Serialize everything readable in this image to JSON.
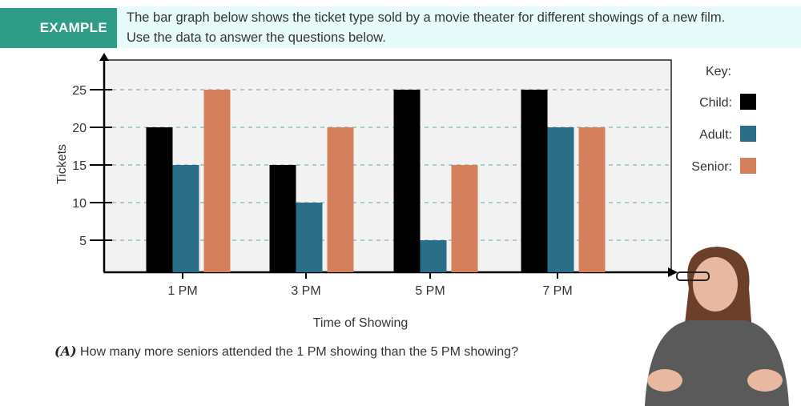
{
  "header": {
    "badge": "EXAMPLE",
    "intro_line1": "The bar graph below shows the ticket type sold by a movie theater for different showings of a new film.",
    "intro_line2": "Use the data to answer the questions below."
  },
  "chart_data": {
    "type": "bar",
    "xlabel": "Time of Showing",
    "ylabel": "Tickets",
    "categories": [
      "1 PM",
      "3 PM",
      "5 PM",
      "7 PM"
    ],
    "yticks": [
      5,
      10,
      15,
      20,
      25
    ],
    "ylim": [
      0,
      29
    ],
    "grid": true,
    "legend_title": "Key:",
    "legend_placement": "right",
    "series": [
      {
        "name": "Child:",
        "color": "#000000",
        "values": [
          20,
          15,
          25,
          25
        ]
      },
      {
        "name": "Adult:",
        "color": "#2a6e87",
        "values": [
          15,
          10,
          5,
          20
        ]
      },
      {
        "name": "Senior:",
        "color": "#d4805c",
        "values": [
          25,
          20,
          15,
          20
        ]
      }
    ]
  },
  "question": {
    "label": "(A)",
    "text": "How many more seniors attended the 1 PM showing than the 5 PM showing?"
  }
}
